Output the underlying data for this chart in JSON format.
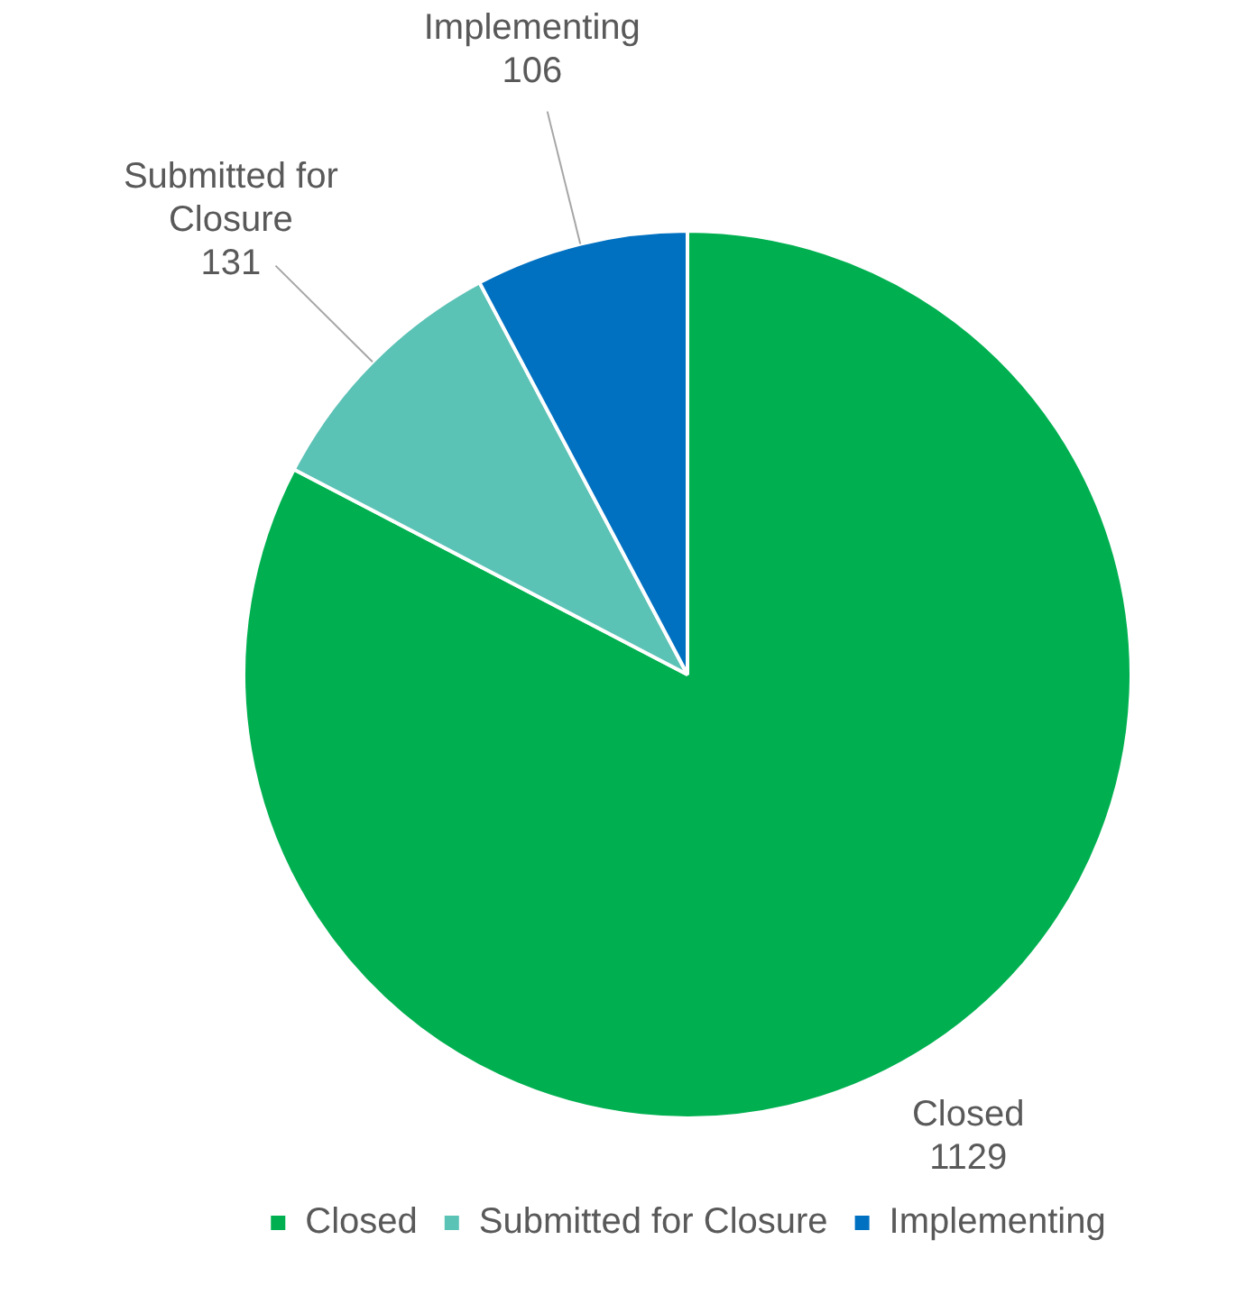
{
  "chart_data": {
    "type": "pie",
    "categories": [
      "Closed",
      "Submitted for Closure",
      "Implementing"
    ],
    "values": [
      1129,
      131,
      106
    ],
    "colors": [
      "#00b050",
      "#5bc2b6",
      "#0070c0"
    ],
    "data_labels": true,
    "legend": "bottom"
  }
}
